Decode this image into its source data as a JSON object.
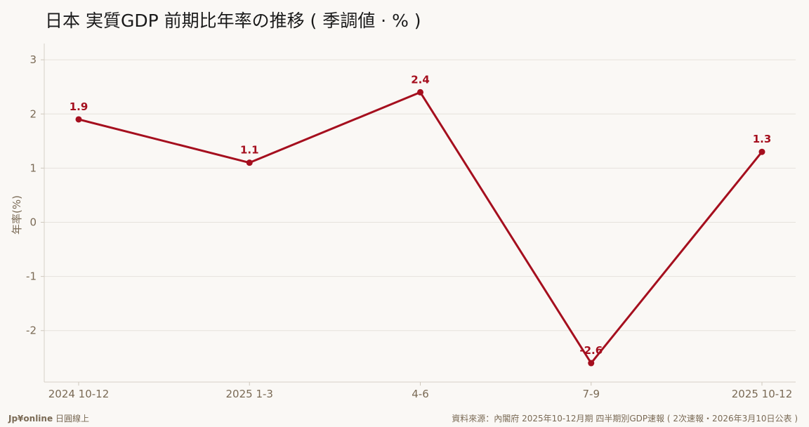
{
  "header": {
    "title": "日本 実質GDP 前期比年率の推移 ( 季調値 · % )"
  },
  "footer": {
    "brand": "Jp¥online",
    "brand_sub": "日圓線上",
    "source": "資料來源：內閣府 2025年10-12月期 四半期別GDP速報 ( 2次速報・2026年3月10日公表 )"
  },
  "colors": {
    "line": "#a50f1e",
    "axis_text": "#7a6a55",
    "grid": "#e6e2dc",
    "background": "#faf8f5"
  },
  "chart_data": {
    "type": "line",
    "title": "日本 実質GDP 前期比年率の推移 ( 季調値 · % )",
    "xlabel": "",
    "ylabel": "年率(%)",
    "categories": [
      "2024 10-12",
      "2025 1-3",
      "4-6",
      "7-9",
      "2025 10-12"
    ],
    "series": [
      {
        "values": [
          1.9,
          1.1,
          2.4,
          -2.6,
          1.3
        ]
      }
    ],
    "data_labels": [
      "1.9",
      "1.1",
      "2.4",
      "-2.6",
      "1.3"
    ],
    "ylim": [
      -2.95,
      3.3
    ],
    "yticks": [
      -2,
      -1,
      0,
      1,
      2,
      3
    ],
    "ytick_labels": [
      "-2",
      "-1",
      "0",
      "1",
      "2",
      "3"
    ],
    "grid": true,
    "legend": "none"
  }
}
